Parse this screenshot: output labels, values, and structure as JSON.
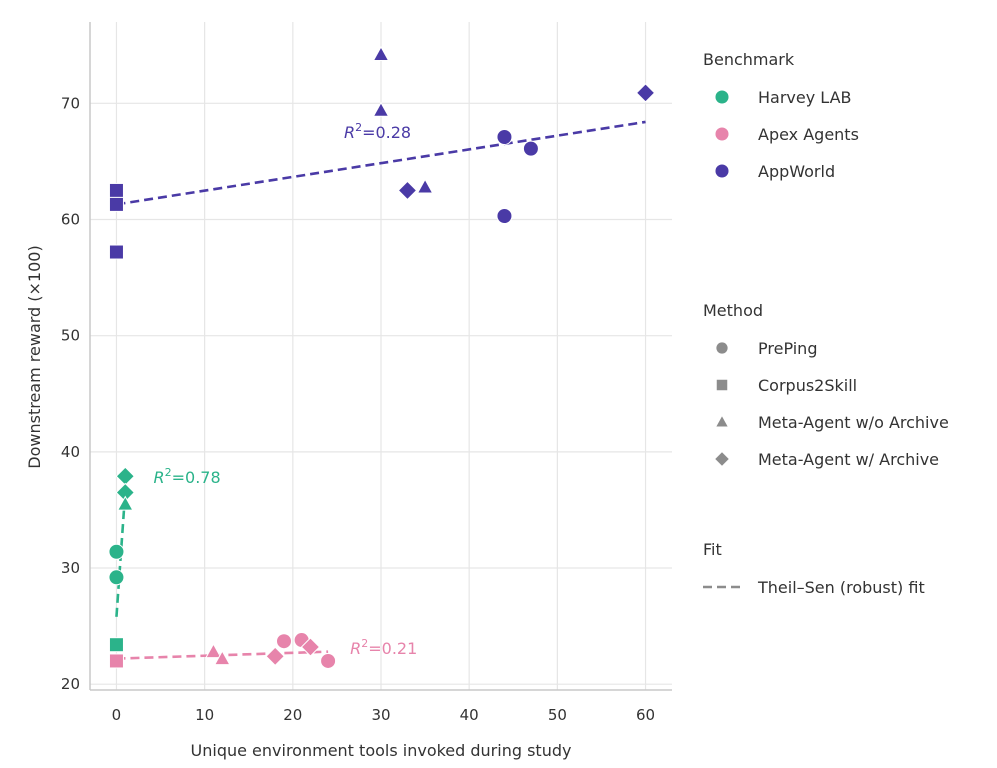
{
  "chart_data": {
    "type": "scatter",
    "xlabel": "Unique environment tools invoked during study",
    "ylabel": "Downstream reward (×100)",
    "xlim": [
      -3,
      63
    ],
    "ylim": [
      19.5,
      77
    ],
    "x_ticks": [
      0,
      10,
      20,
      30,
      40,
      50,
      60
    ],
    "y_ticks": [
      20,
      30,
      40,
      50,
      60,
      70
    ],
    "grid": true,
    "colors": {
      "Harvey LAB": "#2bb38a",
      "Apex Agents": "#e784ab",
      "AppWorld": "#4a3aa6"
    },
    "markers": {
      "PrePing": "circle",
      "Corpus2Skill": "square",
      "Meta-Agent w/o Archive": "triangle",
      "Meta-Agent w/ Archive": "diamond"
    },
    "points": [
      {
        "benchmark": "AppWorld",
        "method": "Meta-Agent w/o Archive",
        "x": 30,
        "y": 74.2
      },
      {
        "benchmark": "AppWorld",
        "method": "Meta-Agent w/o Archive",
        "x": 30,
        "y": 69.4
      },
      {
        "benchmark": "AppWorld",
        "method": "Meta-Agent w/ Archive",
        "x": 60,
        "y": 70.9
      },
      {
        "benchmark": "AppWorld",
        "method": "PrePing",
        "x": 44,
        "y": 67.1
      },
      {
        "benchmark": "AppWorld",
        "method": "PrePing",
        "x": 47,
        "y": 66.1
      },
      {
        "benchmark": "AppWorld",
        "method": "Meta-Agent w/ Archive",
        "x": 33,
        "y": 62.5
      },
      {
        "benchmark": "AppWorld",
        "method": "Meta-Agent w/o Archive",
        "x": 35,
        "y": 62.8
      },
      {
        "benchmark": "AppWorld",
        "method": "PrePing",
        "x": 44,
        "y": 60.3
      },
      {
        "benchmark": "AppWorld",
        "method": "Corpus2Skill",
        "x": 0,
        "y": 62.5
      },
      {
        "benchmark": "AppWorld",
        "method": "Corpus2Skill",
        "x": 0,
        "y": 61.3
      },
      {
        "benchmark": "AppWorld",
        "method": "Corpus2Skill",
        "x": 0,
        "y": 57.2
      },
      {
        "benchmark": "Harvey LAB",
        "method": "Meta-Agent w/ Archive",
        "x": 1,
        "y": 37.9
      },
      {
        "benchmark": "Harvey LAB",
        "method": "Meta-Agent w/ Archive",
        "x": 1,
        "y": 36.5
      },
      {
        "benchmark": "Harvey LAB",
        "method": "Meta-Agent w/o Archive",
        "x": 1,
        "y": 35.5
      },
      {
        "benchmark": "Harvey LAB",
        "method": "PrePing",
        "x": 0,
        "y": 31.4
      },
      {
        "benchmark": "Harvey LAB",
        "method": "PrePing",
        "x": 0,
        "y": 29.2
      },
      {
        "benchmark": "Harvey LAB",
        "method": "Corpus2Skill",
        "x": 0,
        "y": 23.4
      },
      {
        "benchmark": "Harvey LAB",
        "method": "Corpus2Skill",
        "x": 0,
        "y": 22.0
      },
      {
        "benchmark": "Apex Agents",
        "method": "Corpus2Skill",
        "x": 0,
        "y": 22.0
      },
      {
        "benchmark": "Apex Agents",
        "method": "Meta-Agent w/o Archive",
        "x": 11,
        "y": 22.8
      },
      {
        "benchmark": "Apex Agents",
        "method": "Meta-Agent w/o Archive",
        "x": 12,
        "y": 22.2
      },
      {
        "benchmark": "Apex Agents",
        "method": "Meta-Agent w/ Archive",
        "x": 18,
        "y": 22.4
      },
      {
        "benchmark": "Apex Agents",
        "method": "PrePing",
        "x": 19,
        "y": 23.7
      },
      {
        "benchmark": "Apex Agents",
        "method": "PrePing",
        "x": 21,
        "y": 23.8
      },
      {
        "benchmark": "Apex Agents",
        "method": "Meta-Agent w/ Archive",
        "x": 22,
        "y": 23.2
      },
      {
        "benchmark": "Apex Agents",
        "method": "PrePing",
        "x": 24,
        "y": 22.0
      }
    ],
    "fits": [
      {
        "benchmark": "AppWorld",
        "x0": 0,
        "y0": 61.3,
        "x1": 60,
        "y1": 68.4,
        "r2": "0.28",
        "label_x": 25.8,
        "label_y": 67.0
      },
      {
        "benchmark": "Harvey LAB",
        "x0": 0,
        "y0": 25.8,
        "x1": 1,
        "y1": 36.6,
        "r2": "0.78",
        "label_x": 4.2,
        "label_y": 37.3
      },
      {
        "benchmark": "Apex Agents",
        "x0": 0,
        "y0": 22.2,
        "x1": 24,
        "y1": 22.8,
        "r2": "0.21",
        "label_x": 26.5,
        "label_y": 22.6
      }
    ],
    "legend": {
      "benchmark_title": "Benchmark",
      "benchmarks": [
        "Harvey LAB",
        "Apex Agents",
        "AppWorld"
      ],
      "method_title": "Method",
      "methods": [
        "PrePing",
        "Corpus2Skill",
        "Meta-Agent w/o Archive",
        "Meta-Agent w/ Archive"
      ],
      "fit_title": "Fit",
      "fit_label": "Theil–Sen (robust) fit",
      "placement": "right"
    }
  }
}
